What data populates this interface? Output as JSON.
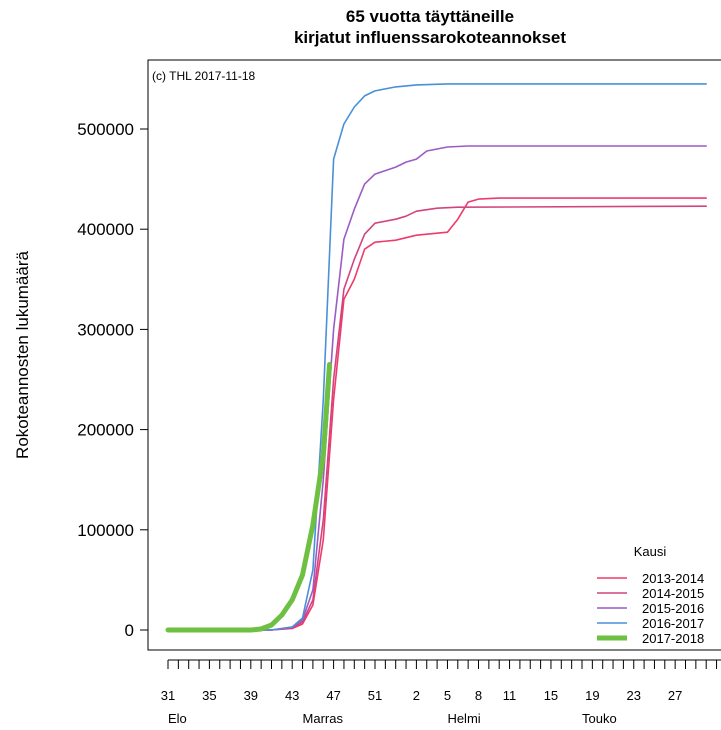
{
  "chart_data": {
    "type": "line",
    "title": [
      "65 vuotta täyttäneille",
      "kirjatut influenssarokoteannokset"
    ],
    "copyright": "(c) THL 2017-11-18",
    "ylabel": "Rokoteannosten lukumäärä",
    "xlabel": "",
    "ylim": [
      0,
      550000
    ],
    "y_ticks": [
      0,
      100000,
      200000,
      300000,
      400000,
      500000
    ],
    "y_tick_labels": [
      "0",
      "100000",
      "200000",
      "300000",
      "400000",
      "500000"
    ],
    "x_tick_labels": [
      {
        "label": "31",
        "i": 0
      },
      {
        "label": "35",
        "i": 4
      },
      {
        "label": "39",
        "i": 8
      },
      {
        "label": "43",
        "i": 12
      },
      {
        "label": "47",
        "i": 16
      },
      {
        "label": "51",
        "i": 20
      },
      {
        "label": "2",
        "i": 24
      },
      {
        "label": "5",
        "i": 27
      },
      {
        "label": "8",
        "i": 30
      },
      {
        "label": "11",
        "i": 33
      },
      {
        "label": "15",
        "i": 37
      },
      {
        "label": "19",
        "i": 41
      },
      {
        "label": "23",
        "i": 45
      },
      {
        "label": "27",
        "i": 49
      }
    ],
    "month_labels": [
      {
        "label": "Elo",
        "i": 0
      },
      {
        "label": "Marras",
        "i": 13
      },
      {
        "label": "Helmi",
        "i": 27
      },
      {
        "label": "Touko",
        "i": 40
      }
    ],
    "legend_title": "Kausi",
    "legend_position": "bottom-right",
    "grid": false,
    "series": [
      {
        "name": "2013-2014",
        "color": "#ef3b6b",
        "width": 1.6,
        "points": [
          [
            0,
            0
          ],
          [
            10,
            0
          ],
          [
            12,
            1500
          ],
          [
            13,
            6000
          ],
          [
            14,
            25000
          ],
          [
            15,
            90000
          ],
          [
            16,
            230000
          ],
          [
            17,
            330000
          ],
          [
            18,
            350000
          ],
          [
            19,
            380000
          ],
          [
            20,
            387000
          ],
          [
            22,
            389000
          ],
          [
            24,
            394000
          ],
          [
            25,
            395000
          ],
          [
            26,
            396000
          ],
          [
            27,
            397000
          ],
          [
            28,
            410000
          ],
          [
            29,
            427000
          ],
          [
            30,
            430000
          ],
          [
            32,
            431000
          ],
          [
            52,
            431000
          ]
        ]
      },
      {
        "name": "2014-2015",
        "color": "#d1457f",
        "width": 1.6,
        "points": [
          [
            0,
            0
          ],
          [
            10,
            0
          ],
          [
            12,
            2000
          ],
          [
            13,
            8000
          ],
          [
            14,
            30000
          ],
          [
            15,
            110000
          ],
          [
            16,
            250000
          ],
          [
            17,
            340000
          ],
          [
            18,
            370000
          ],
          [
            19,
            395000
          ],
          [
            20,
            406000
          ],
          [
            22,
            410000
          ],
          [
            23,
            413000
          ],
          [
            24,
            418000
          ],
          [
            26,
            421000
          ],
          [
            28,
            422000
          ],
          [
            52,
            423000
          ]
        ]
      },
      {
        "name": "2015-2016",
        "color": "#9b5cc4",
        "width": 1.6,
        "points": [
          [
            0,
            0
          ],
          [
            10,
            0
          ],
          [
            12,
            3000
          ],
          [
            13,
            10000
          ],
          [
            14,
            40000
          ],
          [
            15,
            150000
          ],
          [
            16,
            300000
          ],
          [
            17,
            390000
          ],
          [
            18,
            420000
          ],
          [
            19,
            445000
          ],
          [
            20,
            455000
          ],
          [
            22,
            462000
          ],
          [
            23,
            467000
          ],
          [
            24,
            470000
          ],
          [
            25,
            478000
          ],
          [
            27,
            482000
          ],
          [
            29,
            483000
          ],
          [
            52,
            483000
          ]
        ]
      },
      {
        "name": "2016-2017",
        "color": "#4a90d9",
        "width": 1.6,
        "points": [
          [
            0,
            0
          ],
          [
            10,
            0
          ],
          [
            12,
            3000
          ],
          [
            13,
            12000
          ],
          [
            14,
            60000
          ],
          [
            15,
            230000
          ],
          [
            16,
            470000
          ],
          [
            17,
            505000
          ],
          [
            18,
            522000
          ],
          [
            19,
            533000
          ],
          [
            20,
            538000
          ],
          [
            22,
            542000
          ],
          [
            24,
            544000
          ],
          [
            27,
            545000
          ],
          [
            52,
            545000
          ]
        ]
      },
      {
        "name": "2017-2018",
        "color": "#6ec042",
        "width": 5,
        "points": [
          [
            0,
            0
          ],
          [
            8,
            0
          ],
          [
            9,
            1000
          ],
          [
            10,
            5000
          ],
          [
            11,
            15000
          ],
          [
            12,
            30000
          ],
          [
            13,
            55000
          ],
          [
            14,
            105000
          ],
          [
            15,
            175000
          ],
          [
            15.6,
            265000
          ]
        ]
      }
    ]
  }
}
